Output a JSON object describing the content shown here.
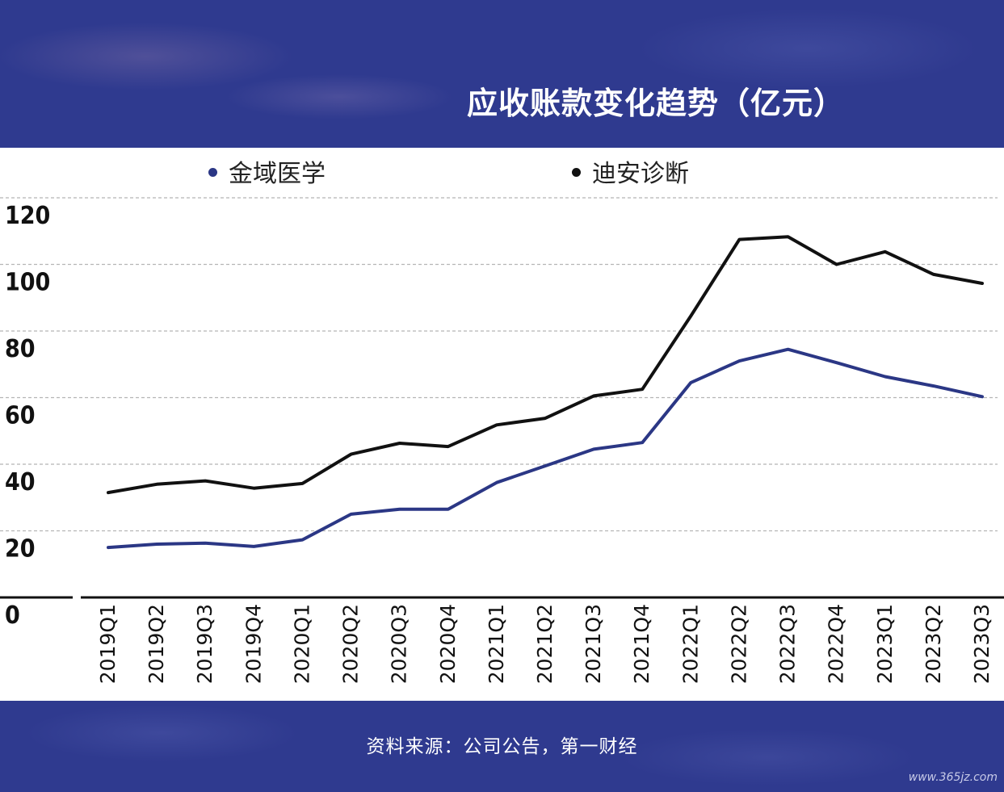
{
  "title": "应收账款变化趋势（亿元）",
  "legend": [
    {
      "name": "金域医学",
      "color": "#2b3785"
    },
    {
      "name": "迪安诊断",
      "color": "#111111"
    }
  ],
  "source": "资料来源：公司公告，第一财经",
  "watermark": "www.365jz.com",
  "chart_data": {
    "type": "line",
    "title": "应收账款变化趋势（亿元）",
    "ylim": [
      0,
      120
    ],
    "yticks": [
      "0",
      "20",
      "40",
      "60",
      "80",
      "100",
      "120"
    ],
    "grid": true,
    "legend_position": "top",
    "categories": [
      "2019Q1",
      "2019Q2",
      "2019Q3",
      "2019Q4",
      "2020Q1",
      "2020Q2",
      "2020Q3",
      "2020Q4",
      "2021Q1",
      "2021Q2",
      "2021Q3",
      "2021Q4",
      "2022Q1",
      "2022Q2",
      "2022Q3",
      "2022Q4",
      "2023Q1",
      "2023Q2",
      "2023Q3"
    ],
    "series": [
      {
        "name": "金域医学",
        "color": "#2b3785",
        "values": [
          15,
          16,
          16.3,
          15.3,
          17.3,
          25,
          26.5,
          26.5,
          34.5,
          39.5,
          44.5,
          46.5,
          64.5,
          71,
          74.5,
          70.5,
          66.3,
          63.5,
          60.3
        ]
      },
      {
        "name": "迪安诊断",
        "color": "#111111",
        "values": [
          31.5,
          34,
          35,
          32.8,
          34.2,
          43,
          46.3,
          45.3,
          51.8,
          53.8,
          60.5,
          62.5,
          84.5,
          107.5,
          108.3,
          100,
          103.8,
          97,
          94.3
        ]
      }
    ]
  }
}
